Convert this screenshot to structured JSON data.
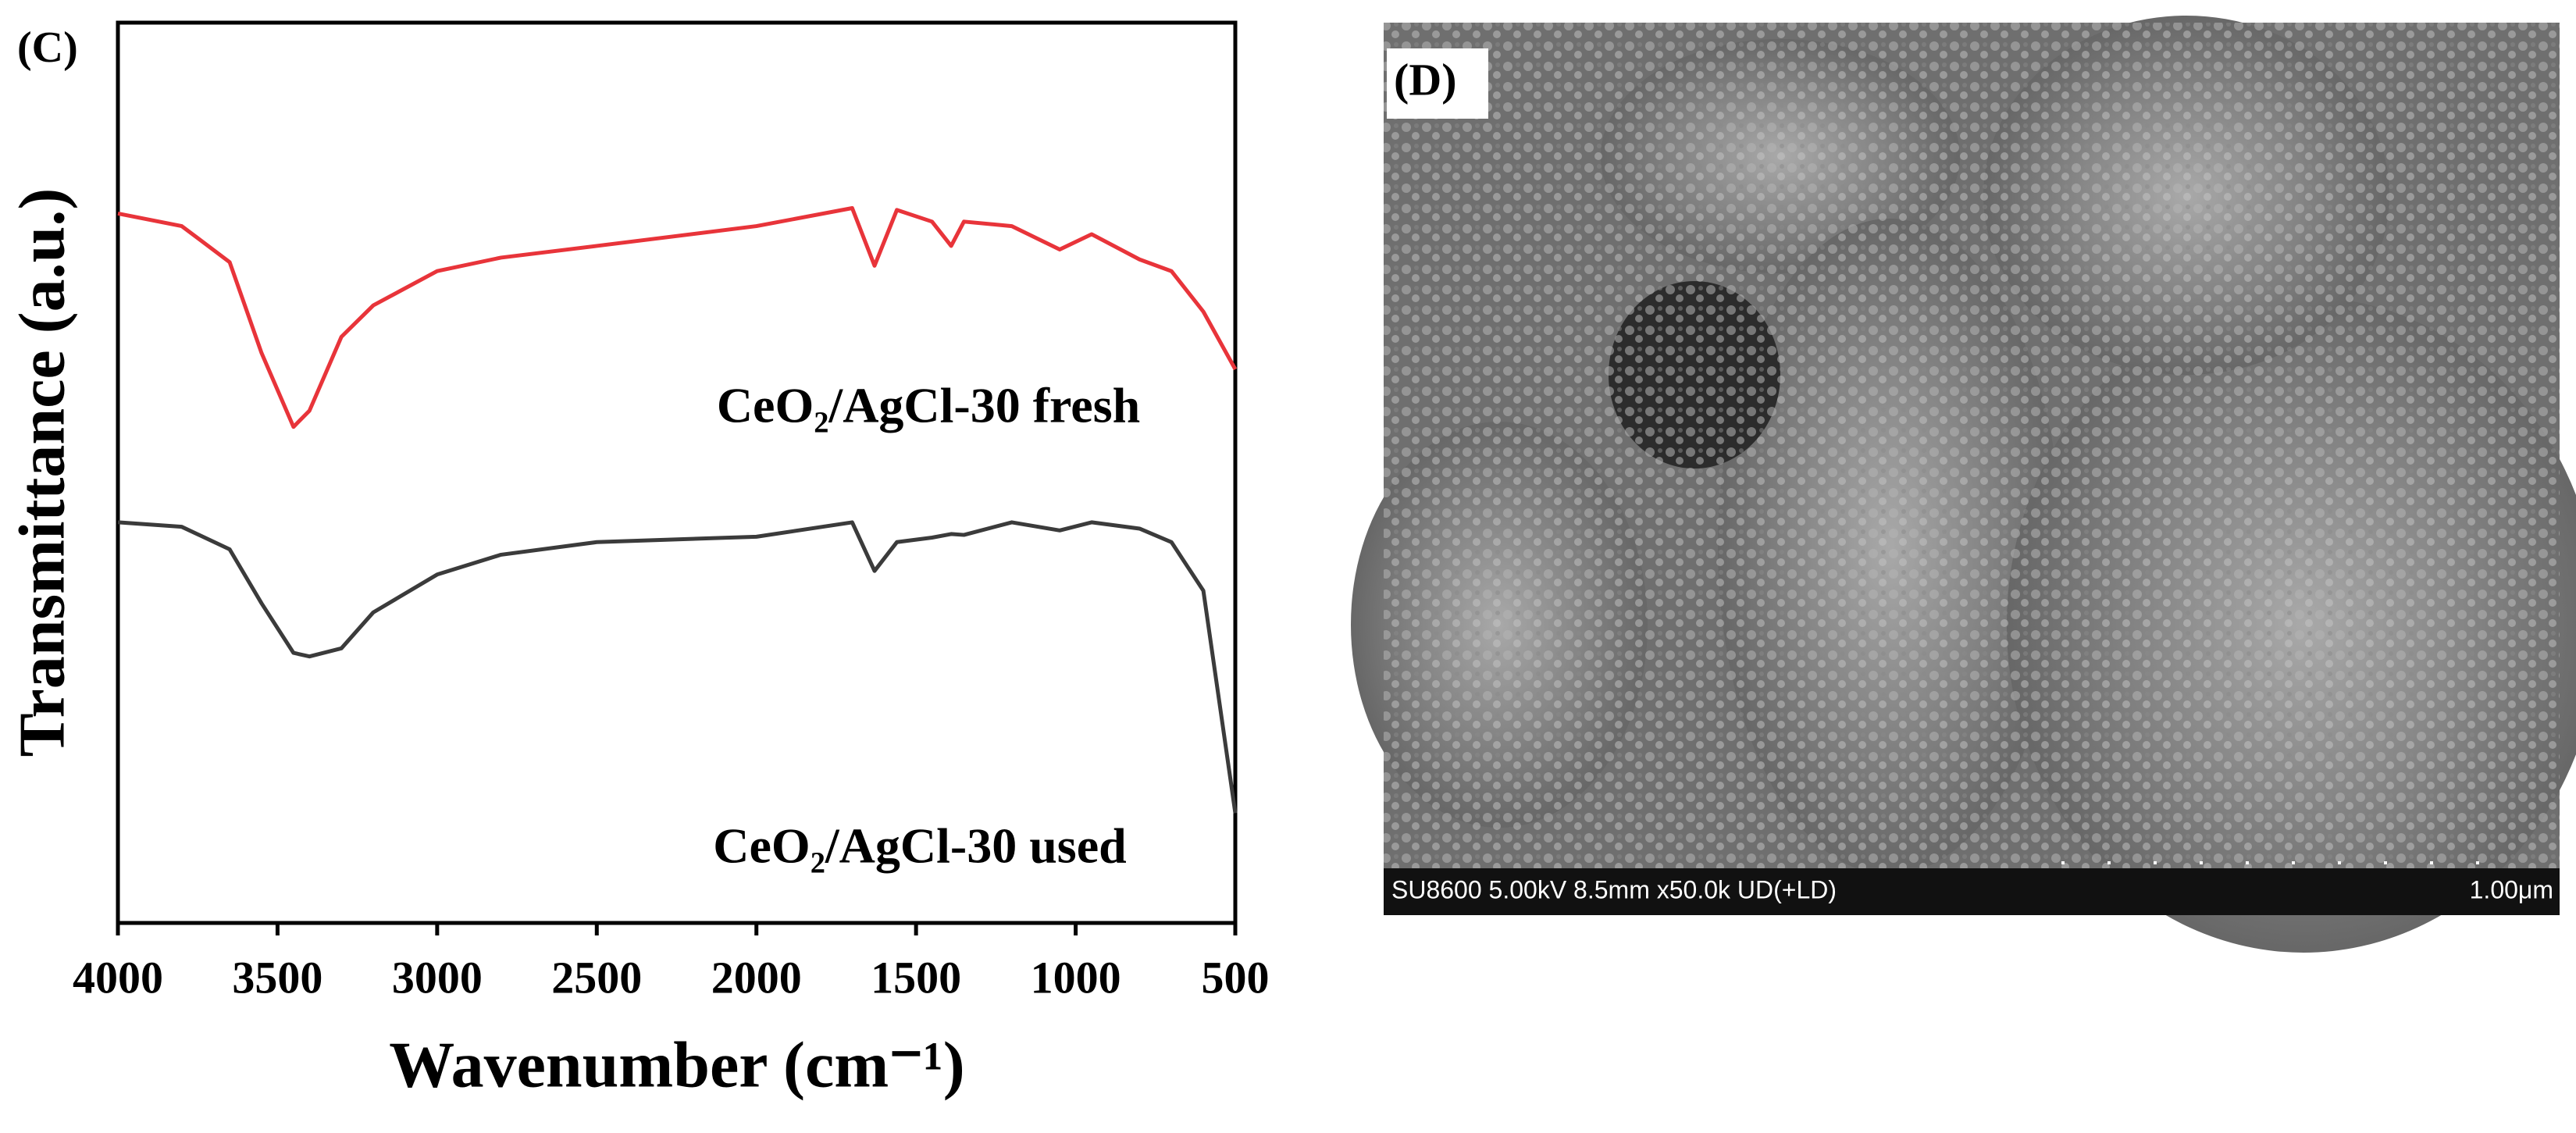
{
  "chart_data": {
    "type": "line",
    "panel_label": "(C)",
    "xlabel": "Wavenumber (cm⁻¹)",
    "ylabel": "Transmittance (a.u.)",
    "xlim": [
      4000,
      500
    ],
    "xticks": [
      4000,
      3500,
      3000,
      2500,
      2000,
      1500,
      1000,
      500
    ],
    "ylim": [
      0,
      100
    ],
    "x": [
      4000,
      3800,
      3650,
      3550,
      3450,
      3400,
      3300,
      3200,
      3000,
      2800,
      2500,
      2000,
      1700,
      1630,
      1560,
      1450,
      1390,
      1350,
      1200,
      1050,
      950,
      800,
      700,
      600,
      500
    ],
    "series": [
      {
        "name": "CeO₂/AgCl-30 fresh",
        "color": "#e8343a",
        "values": [
          78.8,
          77.4,
          73.4,
          63.3,
          55.1,
          56.9,
          65.1,
          68.6,
          72.4,
          73.9,
          75.2,
          77.4,
          79.4,
          73.0,
          79.2,
          77.9,
          75.2,
          77.9,
          77.4,
          74.8,
          76.5,
          73.7,
          72.4,
          67.9,
          61.5
        ]
      },
      {
        "name": "CeO₂/AgCl-30 used",
        "color": "#3b3b3b",
        "values": [
          44.5,
          44.0,
          41.5,
          35.5,
          30.0,
          29.6,
          30.5,
          34.5,
          38.7,
          40.9,
          42.3,
          42.9,
          44.5,
          39.1,
          42.3,
          42.8,
          43.2,
          43.1,
          44.5,
          43.6,
          44.5,
          43.8,
          42.3,
          36.9,
          12.2
        ]
      }
    ]
  },
  "image_panel": {
    "panel_label": "(D)",
    "info": "SU8600 5.00kV 8.5mm x50.0k UD(+LD)",
    "scale_bar": "1.00μm"
  }
}
